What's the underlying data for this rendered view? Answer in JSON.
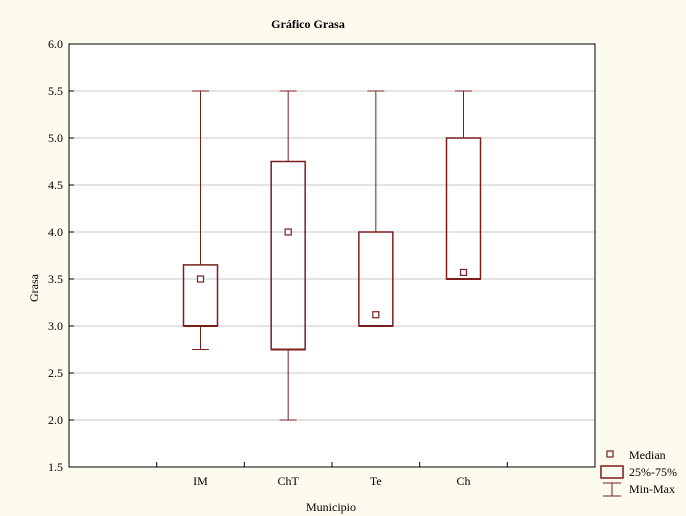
{
  "chart_data": {
    "type": "box",
    "title": "Gráfico Grasa",
    "xlabel": "Municipio",
    "ylabel": "Grasa",
    "ylim": [
      1.5,
      6.0
    ],
    "yticks": [
      "1.5",
      "2.0",
      "2.5",
      "3.0",
      "3.5",
      "4.0",
      "4.5",
      "5.0",
      "5.5",
      "6.0"
    ],
    "grid": true,
    "categories": [
      "IM",
      "ChT",
      "Te",
      "Ch"
    ],
    "series": [
      {
        "category": "IM",
        "min": 2.75,
        "q1": 3.0,
        "median": 3.5,
        "q3": 3.65,
        "max": 5.5
      },
      {
        "category": "ChT",
        "min": 2.0,
        "q1": 2.75,
        "median": 4.0,
        "q3": 4.75,
        "max": 5.5
      },
      {
        "category": "Te",
        "min": 3.0,
        "q1": 3.0,
        "median": 3.12,
        "q3": 4.0,
        "max": 5.5
      },
      {
        "category": "Ch",
        "min": 3.5,
        "q1": 3.5,
        "median": 3.57,
        "q3": 5.0,
        "max": 5.5
      }
    ],
    "legend": {
      "position": "bottom-right",
      "items": [
        {
          "label": "Median"
        },
        {
          "label": "25%-75%"
        },
        {
          "label": "Min-Max"
        }
      ]
    },
    "colors": {
      "box": "#7a1e1e",
      "grid": "#c8c8c8",
      "background": "#fdfaee",
      "plot_background": "#ffffff"
    }
  }
}
